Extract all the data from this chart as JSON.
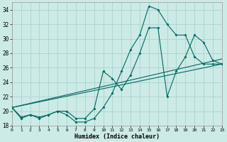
{
  "background_color": "#cceae6",
  "grid_color": "#aad4d0",
  "line_color": "#006860",
  "xlabel": "Humidex (Indice chaleur)",
  "xlim": [
    0,
    23
  ],
  "ylim": [
    18,
    35
  ],
  "xticks": [
    0,
    1,
    2,
    3,
    4,
    5,
    6,
    7,
    8,
    9,
    10,
    11,
    12,
    13,
    14,
    15,
    16,
    17,
    18,
    19,
    20,
    21,
    22,
    23
  ],
  "yticks": [
    18,
    20,
    22,
    24,
    26,
    28,
    30,
    32,
    34
  ],
  "curve1": {
    "x": [
      0,
      1,
      2,
      3,
      4,
      5,
      6,
      7,
      8,
      9,
      10,
      11,
      12,
      13,
      14,
      15,
      16,
      17,
      18,
      19,
      20,
      21,
      22,
      23
    ],
    "y": [
      20.5,
      19.0,
      19.5,
      19.0,
      19.5,
      20.0,
      19.5,
      18.5,
      18.5,
      19.0,
      20.5,
      22.5,
      25.5,
      28.5,
      30.5,
      34.5,
      34.0,
      32.0,
      30.5,
      30.5,
      27.5,
      26.5,
      26.5,
      26.5
    ]
  },
  "curve2": {
    "x": [
      0,
      1,
      2,
      3,
      4,
      5,
      6,
      7,
      8,
      9,
      10,
      11,
      12,
      13,
      14,
      15,
      16,
      17,
      18,
      19,
      20,
      21,
      22,
      23
    ],
    "y": [
      20.5,
      19.2,
      19.5,
      19.2,
      19.5,
      20.0,
      20.0,
      19.0,
      19.0,
      20.3,
      25.5,
      24.5,
      23.0,
      25.0,
      28.0,
      31.5,
      31.5,
      22.0,
      25.5,
      27.5,
      30.5,
      29.5,
      27.0,
      26.5
    ]
  },
  "line1": {
    "x": [
      0,
      23
    ],
    "y": [
      20.5,
      26.5
    ]
  },
  "line2": {
    "x": [
      0,
      23
    ],
    "y": [
      20.5,
      27.2
    ]
  }
}
